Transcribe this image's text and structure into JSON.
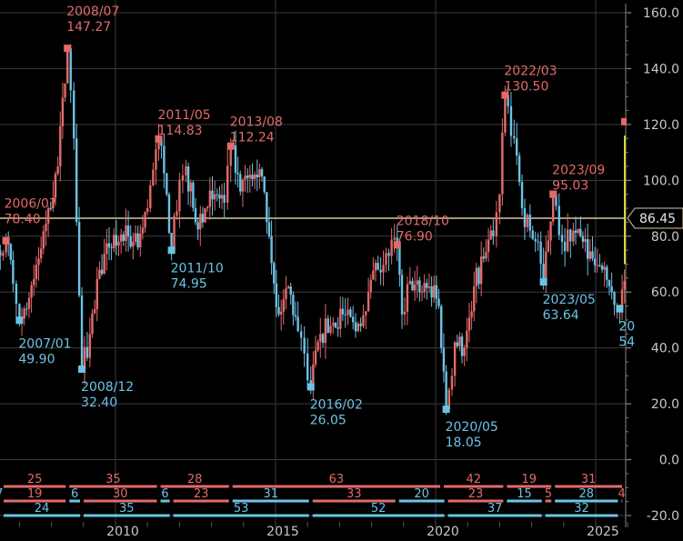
{
  "chart_data": {
    "type": "candlestick",
    "title": "",
    "ylim": [
      -20,
      160
    ],
    "y_ticks": [
      "160.0",
      "140.0",
      "120.0",
      "100.0",
      "80.0",
      "60.0",
      "40.0",
      "20.0",
      "0.0",
      "-20.0"
    ],
    "x_ticks": [
      "2010",
      "2015",
      "2020",
      "2025"
    ],
    "last_price": "86.45",
    "colors": {
      "up": "#e46a6a",
      "down": "#6cc3e6",
      "last": "#d6d640",
      "ref_line": "#d8c8a0",
      "grid": "#3a3a3a"
    },
    "series_points": [
      {
        "t": 2005.5,
        "v": 62
      },
      {
        "t": 2005.8,
        "v": 70
      },
      {
        "t": 2006.1,
        "v": 66
      },
      {
        "t": 2006.4,
        "v": 73
      },
      {
        "t": 2006.58,
        "v": 78.4
      },
      {
        "t": 2006.8,
        "v": 63
      },
      {
        "t": 2007.0,
        "v": 49.9
      },
      {
        "t": 2007.3,
        "v": 58
      },
      {
        "t": 2007.6,
        "v": 72
      },
      {
        "t": 2007.9,
        "v": 90
      },
      {
        "t": 2008.2,
        "v": 105
      },
      {
        "t": 2008.5,
        "v": 147.27
      },
      {
        "t": 2008.7,
        "v": 115
      },
      {
        "t": 2008.95,
        "v": 32.4
      },
      {
        "t": 2009.2,
        "v": 45
      },
      {
        "t": 2009.5,
        "v": 68
      },
      {
        "t": 2009.8,
        "v": 76
      },
      {
        "t": 2010.1,
        "v": 78
      },
      {
        "t": 2010.4,
        "v": 80
      },
      {
        "t": 2010.7,
        "v": 76
      },
      {
        "t": 2011.0,
        "v": 90
      },
      {
        "t": 2011.35,
        "v": 114.83
      },
      {
        "t": 2011.6,
        "v": 95
      },
      {
        "t": 2011.75,
        "v": 74.95
      },
      {
        "t": 2012.0,
        "v": 100
      },
      {
        "t": 2012.2,
        "v": 105
      },
      {
        "t": 2012.5,
        "v": 85
      },
      {
        "t": 2012.8,
        "v": 90
      },
      {
        "t": 2013.1,
        "v": 95
      },
      {
        "t": 2013.4,
        "v": 92
      },
      {
        "t": 2013.6,
        "v": 112.24
      },
      {
        "t": 2013.9,
        "v": 96
      },
      {
        "t": 2014.2,
        "v": 102
      },
      {
        "t": 2014.5,
        "v": 104
      },
      {
        "t": 2014.8,
        "v": 80
      },
      {
        "t": 2015.1,
        "v": 52
      },
      {
        "t": 2015.4,
        "v": 62
      },
      {
        "t": 2015.7,
        "v": 46
      },
      {
        "t": 2015.9,
        "v": 38
      },
      {
        "t": 2016.1,
        "v": 26.05
      },
      {
        "t": 2016.4,
        "v": 45
      },
      {
        "t": 2016.8,
        "v": 49
      },
      {
        "t": 2017.1,
        "v": 52
      },
      {
        "t": 2017.5,
        "v": 46
      },
      {
        "t": 2017.9,
        "v": 60
      },
      {
        "t": 2018.2,
        "v": 68
      },
      {
        "t": 2018.45,
        "v": 74
      },
      {
        "t": 2018.8,
        "v": 76.9
      },
      {
        "t": 2018.95,
        "v": 52
      },
      {
        "t": 2019.2,
        "v": 64
      },
      {
        "t": 2019.5,
        "v": 60
      },
      {
        "t": 2019.8,
        "v": 62
      },
      {
        "t": 2020.1,
        "v": 55
      },
      {
        "t": 2020.33,
        "v": 18.05
      },
      {
        "t": 2020.6,
        "v": 42
      },
      {
        "t": 2020.9,
        "v": 40
      },
      {
        "t": 2021.2,
        "v": 62
      },
      {
        "t": 2021.5,
        "v": 72
      },
      {
        "t": 2021.8,
        "v": 80
      },
      {
        "t": 2022.0,
        "v": 95
      },
      {
        "t": 2022.17,
        "v": 130.5
      },
      {
        "t": 2022.45,
        "v": 115
      },
      {
        "t": 2022.7,
        "v": 90
      },
      {
        "t": 2022.95,
        "v": 82
      },
      {
        "t": 2023.2,
        "v": 78
      },
      {
        "t": 2023.37,
        "v": 63.64
      },
      {
        "t": 2023.67,
        "v": 95.03
      },
      {
        "t": 2023.95,
        "v": 78
      },
      {
        "t": 2024.3,
        "v": 82
      },
      {
        "t": 2024.6,
        "v": 78
      },
      {
        "t": 2024.9,
        "v": 72
      },
      {
        "t": 2025.2,
        "v": 68
      },
      {
        "t": 2025.5,
        "v": 60
      },
      {
        "t": 2025.75,
        "v": 54
      },
      {
        "t": 2025.9,
        "v": 64
      }
    ],
    "annotations": [
      {
        "date": "2006/07",
        "value": "78.40",
        "t": 2006.58,
        "v": 78.4,
        "kind": "high"
      },
      {
        "date": "2007/01",
        "value": "49.90",
        "t": 2007.0,
        "v": 49.9,
        "kind": "low"
      },
      {
        "date": "2008/07",
        "value": "147.27",
        "t": 2008.5,
        "v": 147.27,
        "kind": "high"
      },
      {
        "date": "2008/12",
        "value": "32.40",
        "t": 2008.95,
        "v": 32.4,
        "kind": "low"
      },
      {
        "date": "2011/05",
        "value": "114.83",
        "t": 2011.35,
        "v": 114.83,
        "kind": "high"
      },
      {
        "date": "2011/10",
        "value": "74.95",
        "t": 2011.75,
        "v": 74.95,
        "kind": "low"
      },
      {
        "date": "2013/08",
        "value": "112.24",
        "t": 2013.6,
        "v": 112.24,
        "kind": "high"
      },
      {
        "date": "2016/02",
        "value": "26.05",
        "t": 2016.1,
        "v": 26.05,
        "kind": "low"
      },
      {
        "date": "2018/10",
        "value": "76.90",
        "t": 2018.8,
        "v": 76.9,
        "kind": "high"
      },
      {
        "date": "2020/05",
        "value": "18.05",
        "t": 2020.33,
        "v": 18.05,
        "kind": "low"
      },
      {
        "date": "2022/03",
        "value": "130.50",
        "t": 2022.17,
        "v": 130.5,
        "kind": "high"
      },
      {
        "date": "2023/05",
        "value": "63.64",
        "t": 2023.37,
        "v": 63.64,
        "kind": "low"
      },
      {
        "date": "2023/09",
        "value": "95.03",
        "t": 2023.67,
        "v": 95.03,
        "kind": "high"
      },
      {
        "date": "20",
        "value": "54",
        "t": 2025.75,
        "v": 54,
        "kind": "low"
      }
    ],
    "duration_rows": [
      {
        "row": "top",
        "segments": [
          {
            "label": "25",
            "color": "up",
            "t0": 2005.4,
            "t1": 2008.5
          },
          {
            "label": "35",
            "color": "up",
            "t0": 2008.5,
            "t1": 2011.35
          },
          {
            "label": "28",
            "color": "up",
            "t0": 2011.35,
            "t1": 2013.6
          },
          {
            "label": "63",
            "color": "up",
            "t0": 2013.6,
            "t1": 2020.2
          },
          {
            "label": "42",
            "color": "up",
            "t0": 2020.2,
            "t1": 2022.17
          },
          {
            "label": "19",
            "color": "up",
            "t0": 2022.17,
            "t1": 2023.67
          },
          {
            "label": "31",
            "color": "up",
            "t0": 2023.67,
            "t1": 2026.2
          }
        ]
      },
      {
        "row": "middle",
        "segments": [
          {
            "label": "7",
            "color": "down",
            "t0": 2005.4,
            "t1": 2006.3
          },
          {
            "label": "19",
            "color": "up",
            "t0": 2006.3,
            "t1": 2008.5
          },
          {
            "label": "6",
            "color": "down",
            "t0": 2008.5,
            "t1": 2008.95
          },
          {
            "label": "30",
            "color": "up",
            "t0": 2008.95,
            "t1": 2011.35
          },
          {
            "label": "6",
            "color": "down",
            "t0": 2011.35,
            "t1": 2011.75
          },
          {
            "label": "23",
            "color": "up",
            "t0": 2011.75,
            "t1": 2013.6
          },
          {
            "label": "31",
            "color": "down",
            "t0": 2013.6,
            "t1": 2016.1
          },
          {
            "label": "33",
            "color": "up",
            "t0": 2016.1,
            "t1": 2018.8
          },
          {
            "label": "20",
            "color": "down",
            "t0": 2018.8,
            "t1": 2020.33
          },
          {
            "label": "23",
            "color": "up",
            "t0": 2020.33,
            "t1": 2022.17
          },
          {
            "label": "15",
            "color": "down",
            "t0": 2022.17,
            "t1": 2023.37
          },
          {
            "label": "5",
            "color": "up",
            "t0": 2023.37,
            "t1": 2023.67
          },
          {
            "label": "28",
            "color": "down",
            "t0": 2023.67,
            "t1": 2025.75
          },
          {
            "label": "4",
            "color": "up",
            "t0": 2025.75,
            "t1": 2026.2
          }
        ]
      },
      {
        "row": "bottom",
        "segments": [
          {
            "label": "24",
            "color": "down",
            "t0": 2005.4,
            "t1": 2008.95
          },
          {
            "label": "35",
            "color": "down",
            "t0": 2008.95,
            "t1": 2011.75
          },
          {
            "label": "53",
            "color": "down",
            "t0": 2011.75,
            "t1": 2016.1
          },
          {
            "label": "52",
            "color": "down",
            "t0": 2016.1,
            "t1": 2020.33
          },
          {
            "label": "37",
            "color": "down",
            "t0": 2020.33,
            "t1": 2023.37
          },
          {
            "label": "32",
            "color": "down",
            "t0": 2023.37,
            "t1": 2025.75
          }
        ]
      }
    ]
  }
}
